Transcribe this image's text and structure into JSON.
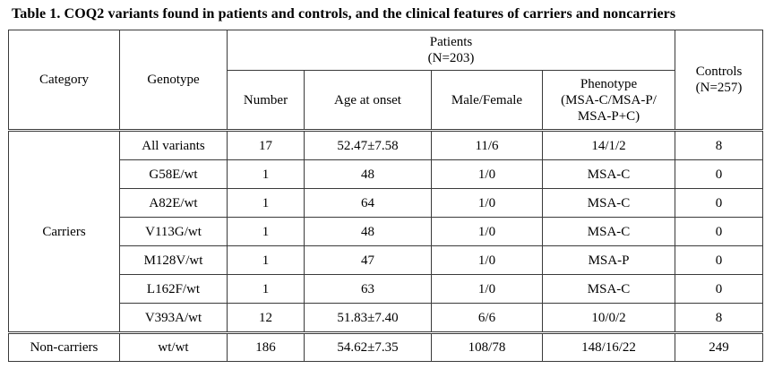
{
  "caption": "Table 1. COQ2 variants found in patients and controls, and the clinical features of carriers and noncarriers",
  "headers": {
    "category": "Category",
    "genotype": "Genotype",
    "patients": "Patients",
    "patients_n": "(N=203)",
    "number": "Number",
    "age_at_onset": "Age at onset",
    "male_female": "Male/Female",
    "phenotype_line1": "Phenotype",
    "phenotype_line2": "(MSA-C/MSA-P/",
    "phenotype_line3": "MSA-P+C)",
    "controls": "Controls",
    "controls_n": "(N=257)"
  },
  "carriers_label": "Carriers",
  "rows": [
    {
      "genotype": "All variants",
      "number": "17",
      "age": "52.47±7.58",
      "sex": "11/6",
      "phenotype": "14/1/2",
      "controls": "8"
    },
    {
      "genotype": "G58E/wt",
      "number": "1",
      "age": "48",
      "sex": "1/0",
      "phenotype": "MSA-C",
      "controls": "0"
    },
    {
      "genotype": "A82E/wt",
      "number": "1",
      "age": "64",
      "sex": "1/0",
      "phenotype": "MSA-C",
      "controls": "0"
    },
    {
      "genotype": "V113G/wt",
      "number": "1",
      "age": "48",
      "sex": "1/0",
      "phenotype": "MSA-C",
      "controls": "0"
    },
    {
      "genotype": "M128V/wt",
      "number": "1",
      "age": "47",
      "sex": "1/0",
      "phenotype": "MSA-P",
      "controls": "0"
    },
    {
      "genotype": "L162F/wt",
      "number": "1",
      "age": "63",
      "sex": "1/0",
      "phenotype": "MSA-C",
      "controls": "0"
    },
    {
      "genotype": "V393A/wt",
      "number": "12",
      "age": "51.83±7.40",
      "sex": "6/6",
      "phenotype": "10/0/2",
      "controls": "8"
    }
  ],
  "noncarriers": {
    "category": "Non-carriers",
    "genotype": "wt/wt",
    "number": "186",
    "age": "54.62±7.35",
    "sex": "108/78",
    "phenotype": "148/16/22",
    "controls": "249"
  }
}
